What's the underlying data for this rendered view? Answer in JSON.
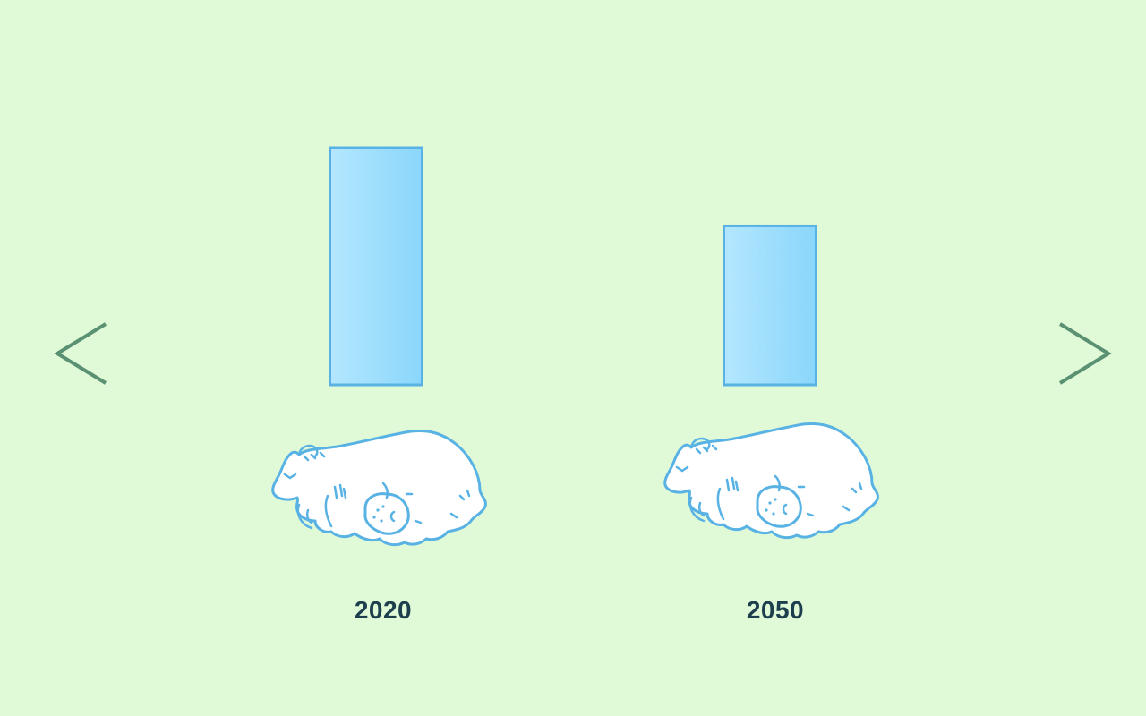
{
  "colors": {
    "background": "#e0fad8",
    "bar_fill_light": "#b4e7fe",
    "bar_fill_dark": "#8ad6fb",
    "bar_stroke": "#58b2e4",
    "bear_stroke": "#58b2e4",
    "bear_fill": "#ffffff",
    "arrow": "#5a9172",
    "label": "#1d3e4c"
  },
  "icons": {
    "prev": "chevron-left-icon",
    "next": "chevron-right-icon",
    "bear": "polar-bear-with-cub-icon"
  },
  "chart_data": {
    "type": "bar",
    "categories": [
      "2020",
      "2050"
    ],
    "values": [
      100,
      67
    ],
    "title": "",
    "xlabel": "",
    "ylabel": "",
    "ylim": [
      0,
      100
    ],
    "grid": false,
    "legend": "none"
  }
}
